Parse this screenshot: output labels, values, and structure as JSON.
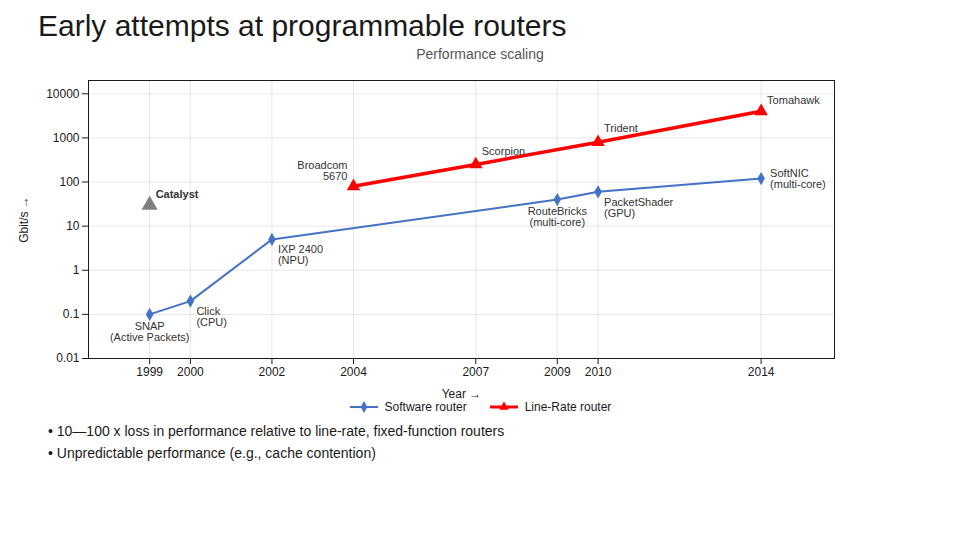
{
  "chart_data": {
    "type": "line",
    "title": "Early attempts at programmable routers",
    "subtitle": "Performance scaling",
    "xlabel": "Year",
    "ylabel": "Gbit/s",
    "log": "y",
    "grid": true,
    "legend": "bottom",
    "xlim": [
      1997.5,
      2015.8
    ],
    "xticks": [
      1999,
      2000,
      2002,
      2004,
      2007,
      2009,
      2010,
      2014
    ],
    "ylim": [
      0.01,
      20000
    ],
    "yticks": [
      0.01,
      0.1,
      1,
      10,
      100,
      1000,
      10000
    ],
    "series": [
      {
        "name": "Software router",
        "color": "#4472C4",
        "marker": "diamond",
        "x": [
          1999,
          2000,
          2002,
          2009,
          2010,
          2014
        ],
        "values": [
          0.1,
          0.2,
          5,
          40,
          60,
          120
        ]
      },
      {
        "name": "Line-Rate router",
        "color": "#FF0000",
        "marker": "triangle",
        "x": [
          2004,
          2007,
          2010,
          2014
        ],
        "values": [
          80,
          250,
          800,
          4000
        ]
      },
      {
        "type": "scatter",
        "color": "#808080",
        "marker": "triangle",
        "x": [
          1999
        ],
        "values": [
          30
        ]
      }
    ],
    "annotations": [
      {
        "text": "SNAP\n(Active Packets)",
        "x": 1999,
        "y": 0.1
      },
      {
        "text": "Click\n(CPU)",
        "x": 2000,
        "y": 0.2
      },
      {
        "text": "IXP 2400\n(NPU)",
        "x": 2002,
        "y": 5
      },
      {
        "text": "RouteBricks\n(multi-core)",
        "x": 2009,
        "y": 40
      },
      {
        "text": "PacketShader\n(GPU)",
        "x": 2010,
        "y": 60
      },
      {
        "text": "SoftNIC\n(multi-core)",
        "x": 2014,
        "y": 120
      },
      {
        "text": "Broadcom\n5670",
        "x": 2004,
        "y": 80
      },
      {
        "text": "Scorpion",
        "x": 2007,
        "y": 250
      },
      {
        "text": "Trident",
        "x": 2010,
        "y": 800
      },
      {
        "text": "Tomahawk",
        "x": 2014,
        "y": 4000
      },
      {
        "text": "Catalyst",
        "x": 1999,
        "y": 30
      }
    ],
    "notes": [
      "• 10—100 x loss in performance relative to line-rate, fixed-function routers",
      "• Unpredictable performance (e.g., cache contention)"
    ]
  }
}
